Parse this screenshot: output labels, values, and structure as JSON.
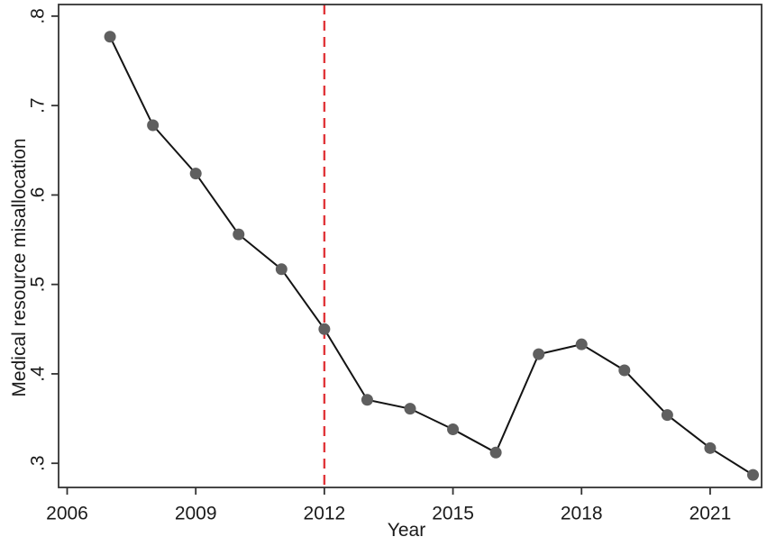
{
  "chart_data": {
    "type": "line",
    "title": "",
    "xlabel": "Year",
    "ylabel": "Medical resource misallocation",
    "x": [
      2007,
      2008,
      2009,
      2010,
      2011,
      2012,
      2013,
      2014,
      2015,
      2016,
      2017,
      2018,
      2019,
      2020,
      2021,
      2022
    ],
    "values": [
      0.777,
      0.678,
      0.624,
      0.556,
      0.517,
      0.45,
      0.371,
      0.361,
      0.338,
      0.312,
      0.422,
      0.433,
      0.404,
      0.354,
      0.317,
      0.287
    ],
    "xlim": [
      2005.8,
      2022.2
    ],
    "ylim": [
      0.273,
      0.813
    ],
    "x_ticks": [
      2006,
      2009,
      2012,
      2015,
      2018,
      2021
    ],
    "x_tick_labels": [
      "2006",
      "2009",
      "2012",
      "2015",
      "2018",
      "2021"
    ],
    "y_ticks": [
      0.3,
      0.4,
      0.5,
      0.6,
      0.7,
      0.8
    ],
    "y_tick_labels": [
      ".3",
      ".4",
      ".5",
      ".6",
      ".7",
      ".8"
    ],
    "grid": false,
    "legend": null,
    "reference_line": {
      "x": 2012,
      "style": "dashed",
      "color": "#e0353a"
    },
    "colors": {
      "line": "#141414",
      "marker": "#5f5f5f",
      "axis": "#333333",
      "text": "#1a1a1a",
      "background": "#ffffff"
    }
  }
}
